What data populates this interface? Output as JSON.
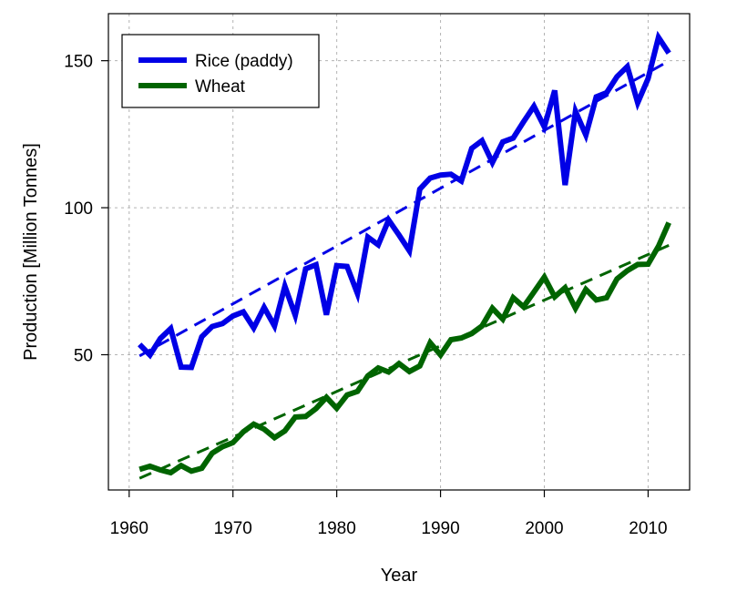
{
  "chart_data": {
    "type": "line",
    "xlabel": "Year",
    "ylabel": "Production [Million Tonnes]",
    "xlim": [
      1958,
      2014
    ],
    "ylim": [
      4,
      166
    ],
    "xticks": [
      1960,
      1970,
      1980,
      1990,
      2000,
      2010
    ],
    "yticks": [
      50,
      100,
      150
    ],
    "grid": true,
    "legend_position": "top-left",
    "x": [
      1961,
      1962,
      1963,
      1964,
      1965,
      1966,
      1967,
      1968,
      1969,
      1970,
      1971,
      1972,
      1973,
      1974,
      1975,
      1976,
      1977,
      1978,
      1979,
      1980,
      1981,
      1982,
      1983,
      1984,
      1985,
      1986,
      1987,
      1988,
      1989,
      1990,
      1991,
      1992,
      1993,
      1994,
      1995,
      1996,
      1997,
      1998,
      1999,
      2000,
      2001,
      2002,
      2003,
      2004,
      2005,
      2006,
      2007,
      2008,
      2009,
      2010,
      2011,
      2012
    ],
    "series": [
      {
        "name": "Rice (paddy)",
        "color": "#0000e6",
        "values": [
          53.5,
          49.9,
          55.5,
          58.9,
          45.8,
          45.7,
          56.1,
          59.6,
          60.6,
          63.2,
          64.6,
          59.1,
          66.1,
          59.8,
          73.3,
          63.4,
          79.2,
          80.6,
          63.6,
          80.3,
          80.0,
          70.8,
          90.0,
          87.4,
          95.8,
          90.7,
          85.3,
          106.3,
          110.1,
          111.1,
          111.4,
          109.1,
          120.2,
          122.8,
          115.4,
          122.4,
          123.7,
          129.2,
          134.5,
          127.5,
          139.9,
          107.7,
          132.8,
          124.7,
          137.7,
          139.1,
          144.6,
          148.0,
          135.7,
          143.9,
          157.9,
          152.6
        ]
      },
      {
        "name": "Wheat",
        "color": "#006400",
        "values": [
          11.0,
          12.1,
          10.8,
          9.9,
          12.3,
          10.4,
          11.4,
          16.5,
          18.7,
          20.1,
          23.8,
          26.4,
          24.7,
          21.8,
          24.1,
          28.8,
          29.0,
          31.7,
          35.5,
          31.8,
          36.3,
          37.5,
          42.8,
          45.5,
          44.1,
          47.0,
          44.3,
          46.2,
          54.1,
          49.9,
          55.1,
          55.7,
          57.2,
          59.8,
          65.8,
          62.1,
          69.4,
          66.3,
          71.3,
          76.4,
          69.7,
          72.8,
          65.8,
          72.2,
          68.6,
          69.4,
          75.8,
          78.6,
          80.7,
          80.8,
          86.9,
          94.9
        ]
      }
    ],
    "trendlines": [
      {
        "series": "Rice (paddy)",
        "color": "#0000e6",
        "x": [
          1961,
          2012
        ],
        "y": [
          49.6,
          149.9
        ]
      },
      {
        "series": "Wheat",
        "color": "#006400",
        "x": [
          1961,
          2012
        ],
        "y": [
          8.0,
          87.2
        ]
      }
    ]
  }
}
